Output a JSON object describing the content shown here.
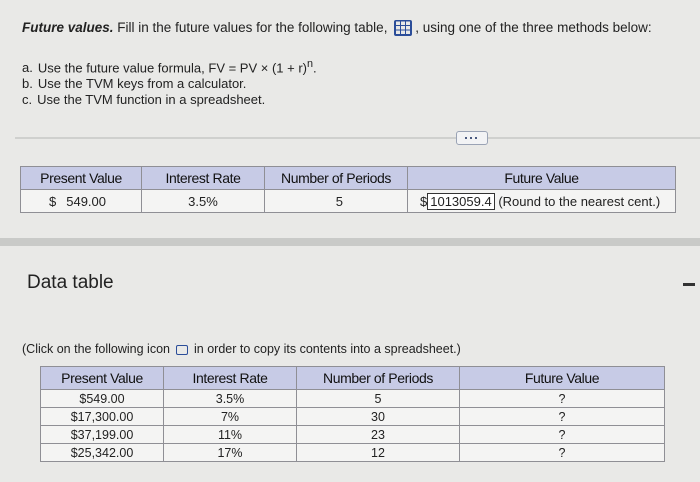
{
  "prompt": {
    "title": "Future values.",
    "text": "Fill in the future values for the following table,",
    "text2": ", using one of the three methods below:"
  },
  "methods": [
    {
      "label": "a.",
      "text": "Use the future value formula, FV = PV × (1 + r)",
      "sup": "n",
      "end": "."
    },
    {
      "label": "b.",
      "text": "Use the TVM keys from a calculator."
    },
    {
      "label": "c.",
      "text": "Use the TVM function in a spreadsheet."
    }
  ],
  "table": {
    "headers": [
      "Present Value",
      "Interest Rate",
      "Number of Periods",
      "Future Value"
    ],
    "row": {
      "currency": "$",
      "present_value": "549.00",
      "rate": "3.5%",
      "periods": "5",
      "fv_currency": "$",
      "fv_input": "1013059.4",
      "note": "(Round to the nearest cent.)"
    }
  },
  "data_table": {
    "title": "Data table",
    "instruction": "(Click on the following icon",
    "instruction2": "in order to copy its contents into a spreadsheet.)",
    "headers": [
      "Present Value",
      "Interest Rate",
      "Number of Periods",
      "Future Value"
    ],
    "rows": [
      [
        "$549.00",
        "3.5%",
        "5",
        "?"
      ],
      [
        "$17,300.00",
        "7%",
        "30",
        "?"
      ],
      [
        "$37,199.00",
        "11%",
        "23",
        "?"
      ],
      [
        "$25,342.00",
        "17%",
        "12",
        "?"
      ]
    ]
  }
}
